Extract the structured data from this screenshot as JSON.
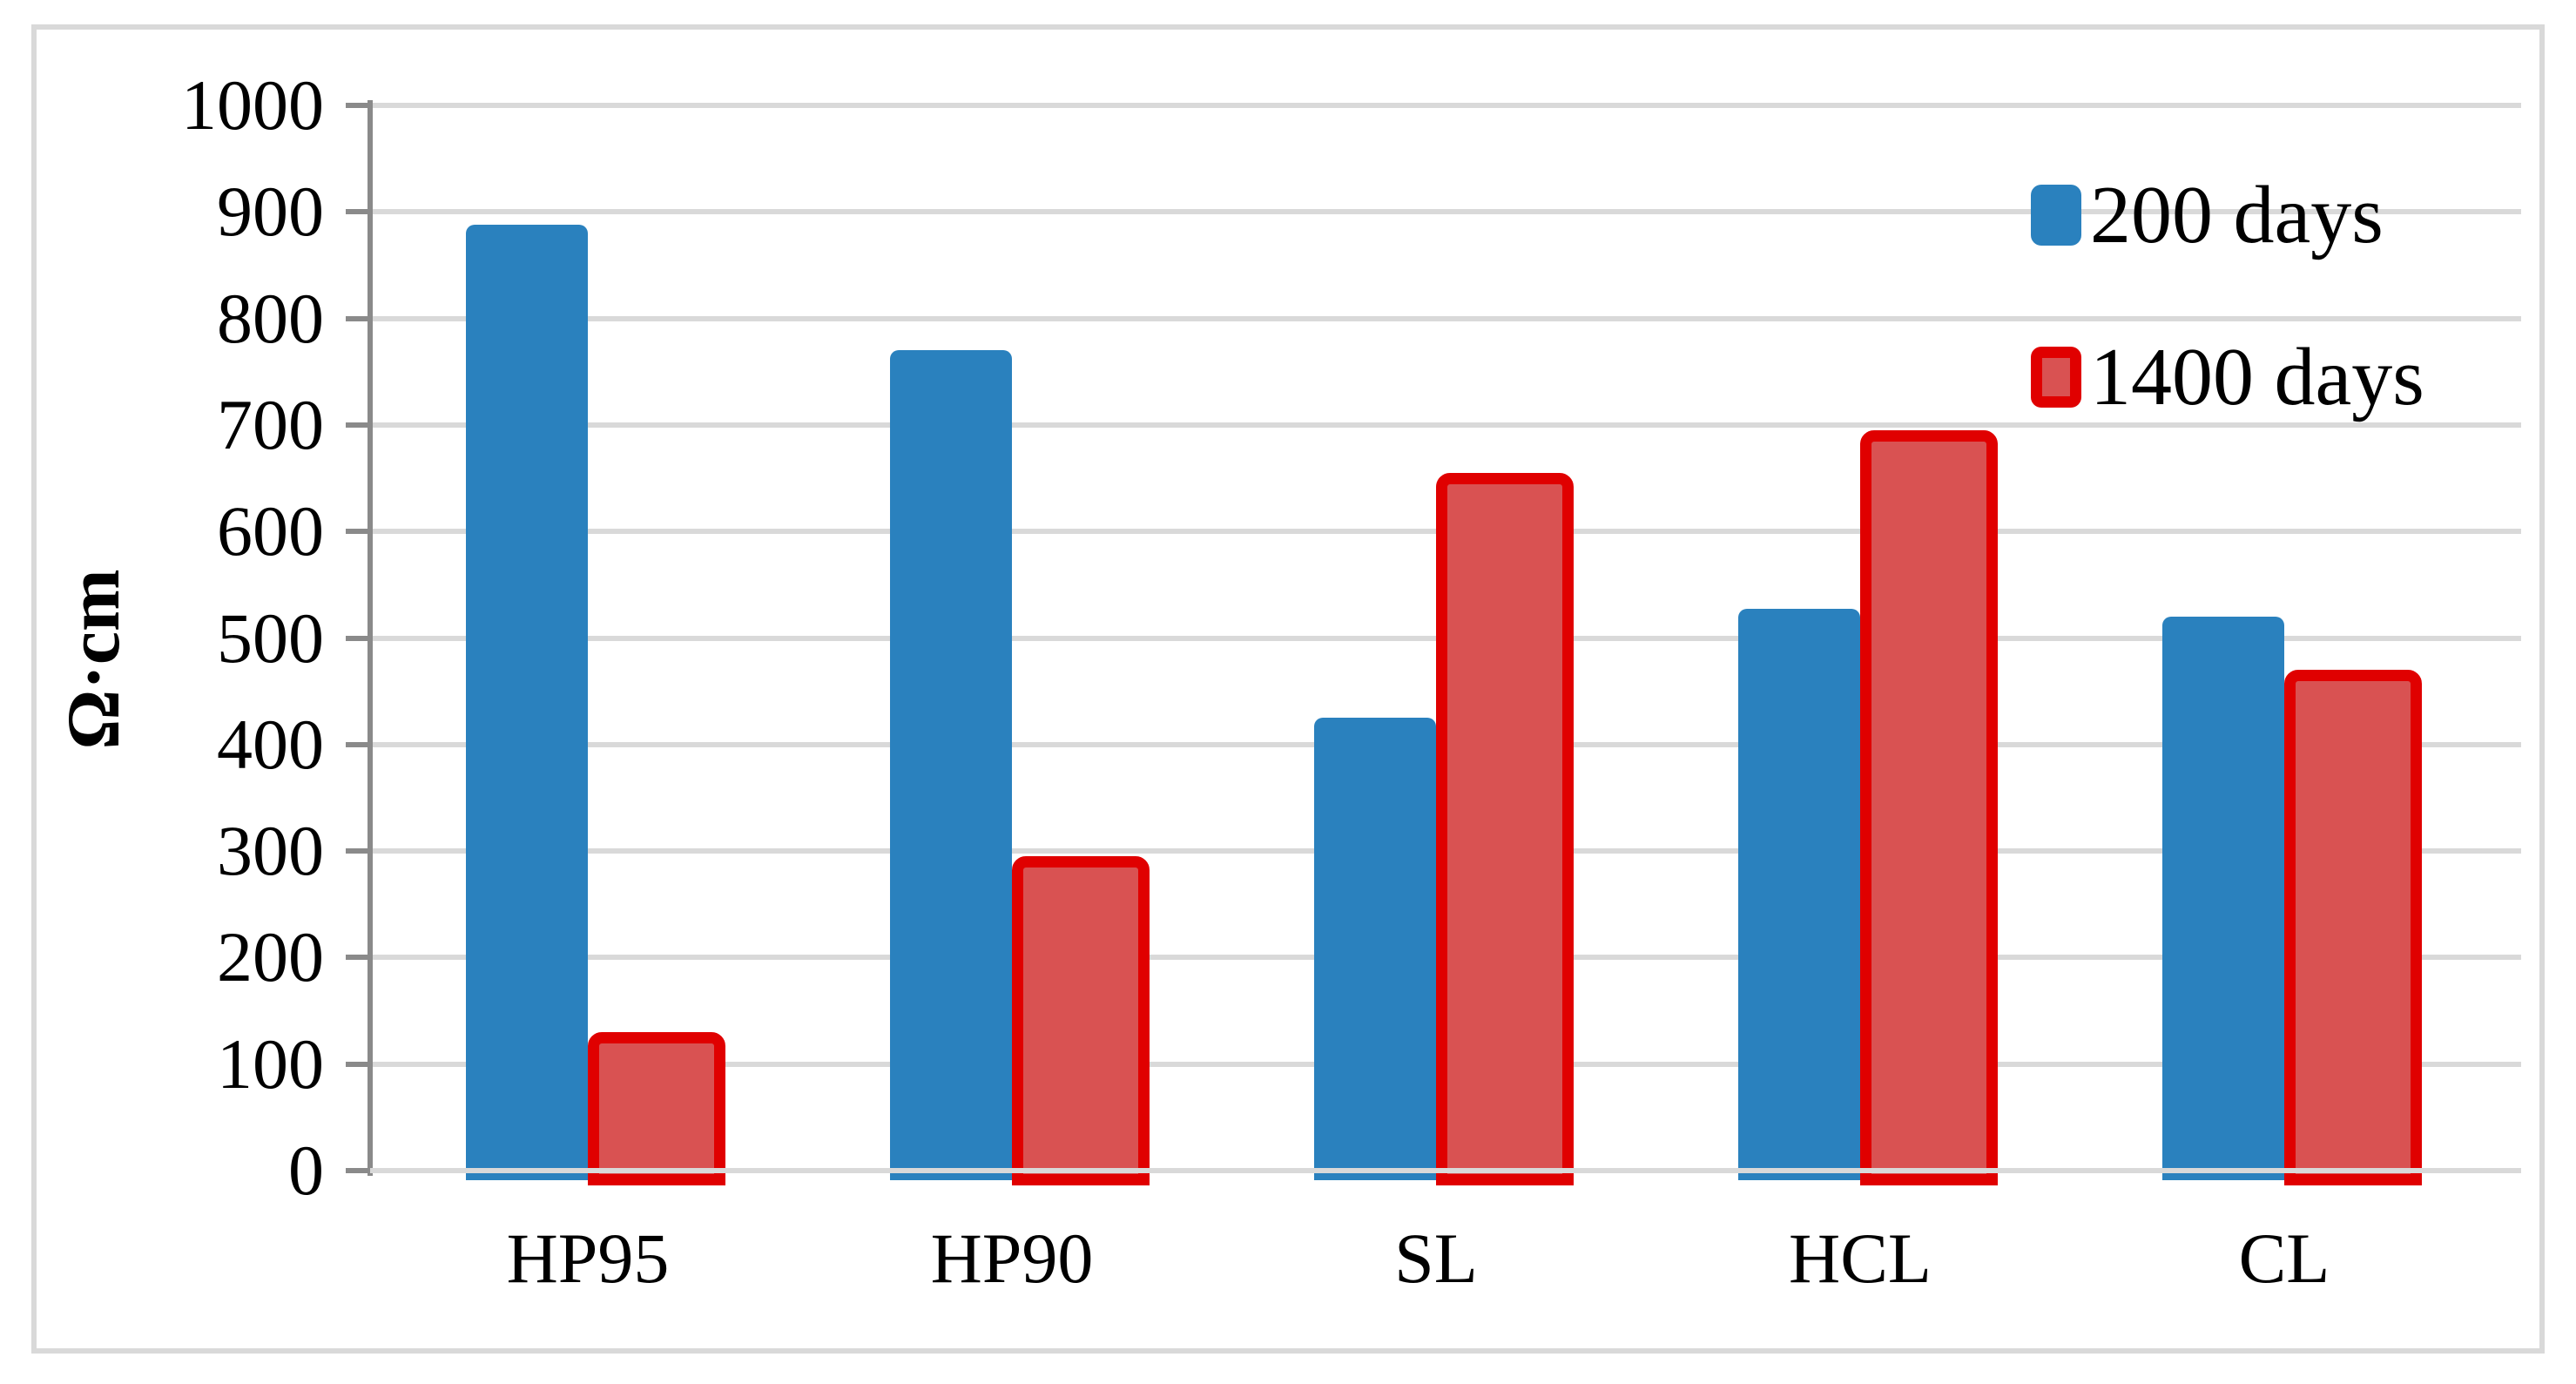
{
  "figure": {
    "background": "#FFFFFF",
    "border_color": "#D9D9D9"
  },
  "chart_data": {
    "type": "bar",
    "title": "",
    "xlabel": "",
    "ylabel": "Ω·cm",
    "categories": [
      "HP95",
      "HP90",
      "SL",
      "HCL",
      "CL"
    ],
    "series": [
      {
        "name": "200 days",
        "color": "#2A81BE",
        "values": [
          888,
          770,
          425,
          527,
          520
        ]
      },
      {
        "name": "1400 days",
        "color": "#D95252",
        "border_color": "#E00000",
        "values": [
          125,
          290,
          650,
          690,
          465
        ]
      }
    ],
    "ylim": [
      0,
      1000
    ],
    "ytick_step": 100,
    "yticks": [
      "0",
      "100",
      "200",
      "300",
      "400",
      "500",
      "600",
      "700",
      "800",
      "900",
      "1000"
    ],
    "grid": "horizontal",
    "legend_position": "top-right",
    "gridline_color": "#D9D9D9",
    "axis_color": "#8A8A8A",
    "text_color": "#000000"
  }
}
